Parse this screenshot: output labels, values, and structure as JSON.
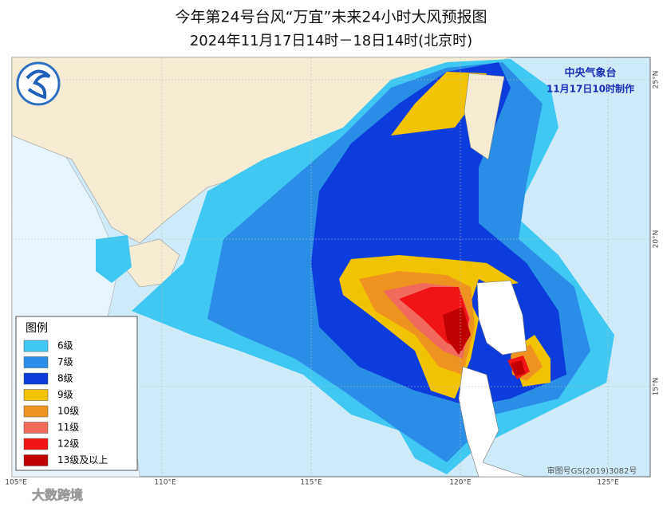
{
  "header": {
    "title": "今年第24号台风“万宜”未来24小时大风预报图",
    "subtitle": "2024年11月17日14时－18日14时(北京时)"
  },
  "agency": {
    "name": "中央气象台",
    "issued": "11月17日10时制作"
  },
  "legend": {
    "title": "图例",
    "items": [
      {
        "label": "6级",
        "color": "#3ec8f2"
      },
      {
        "label": "7级",
        "color": "#2a8ee6"
      },
      {
        "label": "8级",
        "color": "#0c3ddc"
      },
      {
        "label": "9级",
        "color": "#f2c300"
      },
      {
        "label": "10级",
        "color": "#ef9320"
      },
      {
        "label": "11级",
        "color": "#f26a5c"
      },
      {
        "label": "12级",
        "color": "#f01414"
      },
      {
        "label": "13级及以上",
        "color": "#c00000"
      }
    ]
  },
  "axes": {
    "lon": [
      "105°E",
      "110°E",
      "115°E",
      "120°E",
      "125°E"
    ],
    "lat": [
      "25°N",
      "20°N",
      "15°N"
    ]
  },
  "footer": {
    "approval": "审图号GS(2019)3082号",
    "watermark": "大数跨境"
  }
}
